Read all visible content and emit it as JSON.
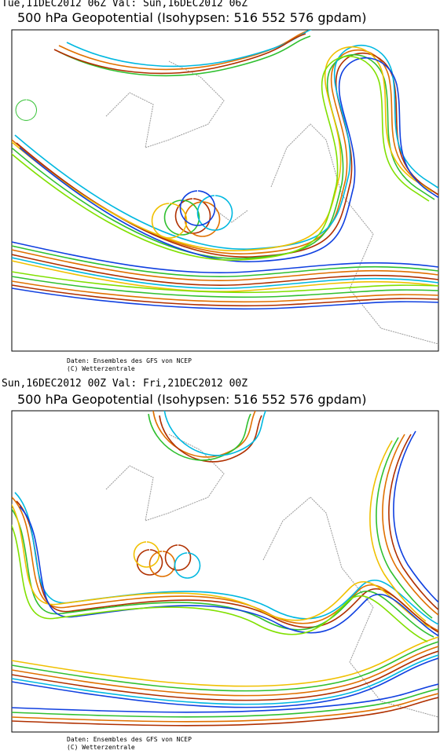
{
  "panels": [
    {
      "run": "Tue,11DEC2012 06Z Val: Sun,16DEC2012 06Z",
      "title": "500 hPa Geopotential (Isohypsen: 516 552 576 gpdam)",
      "credits": [
        "Daten: Ensembles des GFS von NCEP",
        "(C) Wetterzentrale"
      ]
    },
    {
      "run": "Sun,16DEC2012 00Z Val: Fri,21DEC2012 00Z",
      "title": "500 hPa Geopotential (Isohypsen: 516 552 576 gpdam)",
      "credits": [
        "Daten: Ensembles des GFS von NCEP",
        "(C) Wetterzentrale"
      ]
    }
  ]
}
